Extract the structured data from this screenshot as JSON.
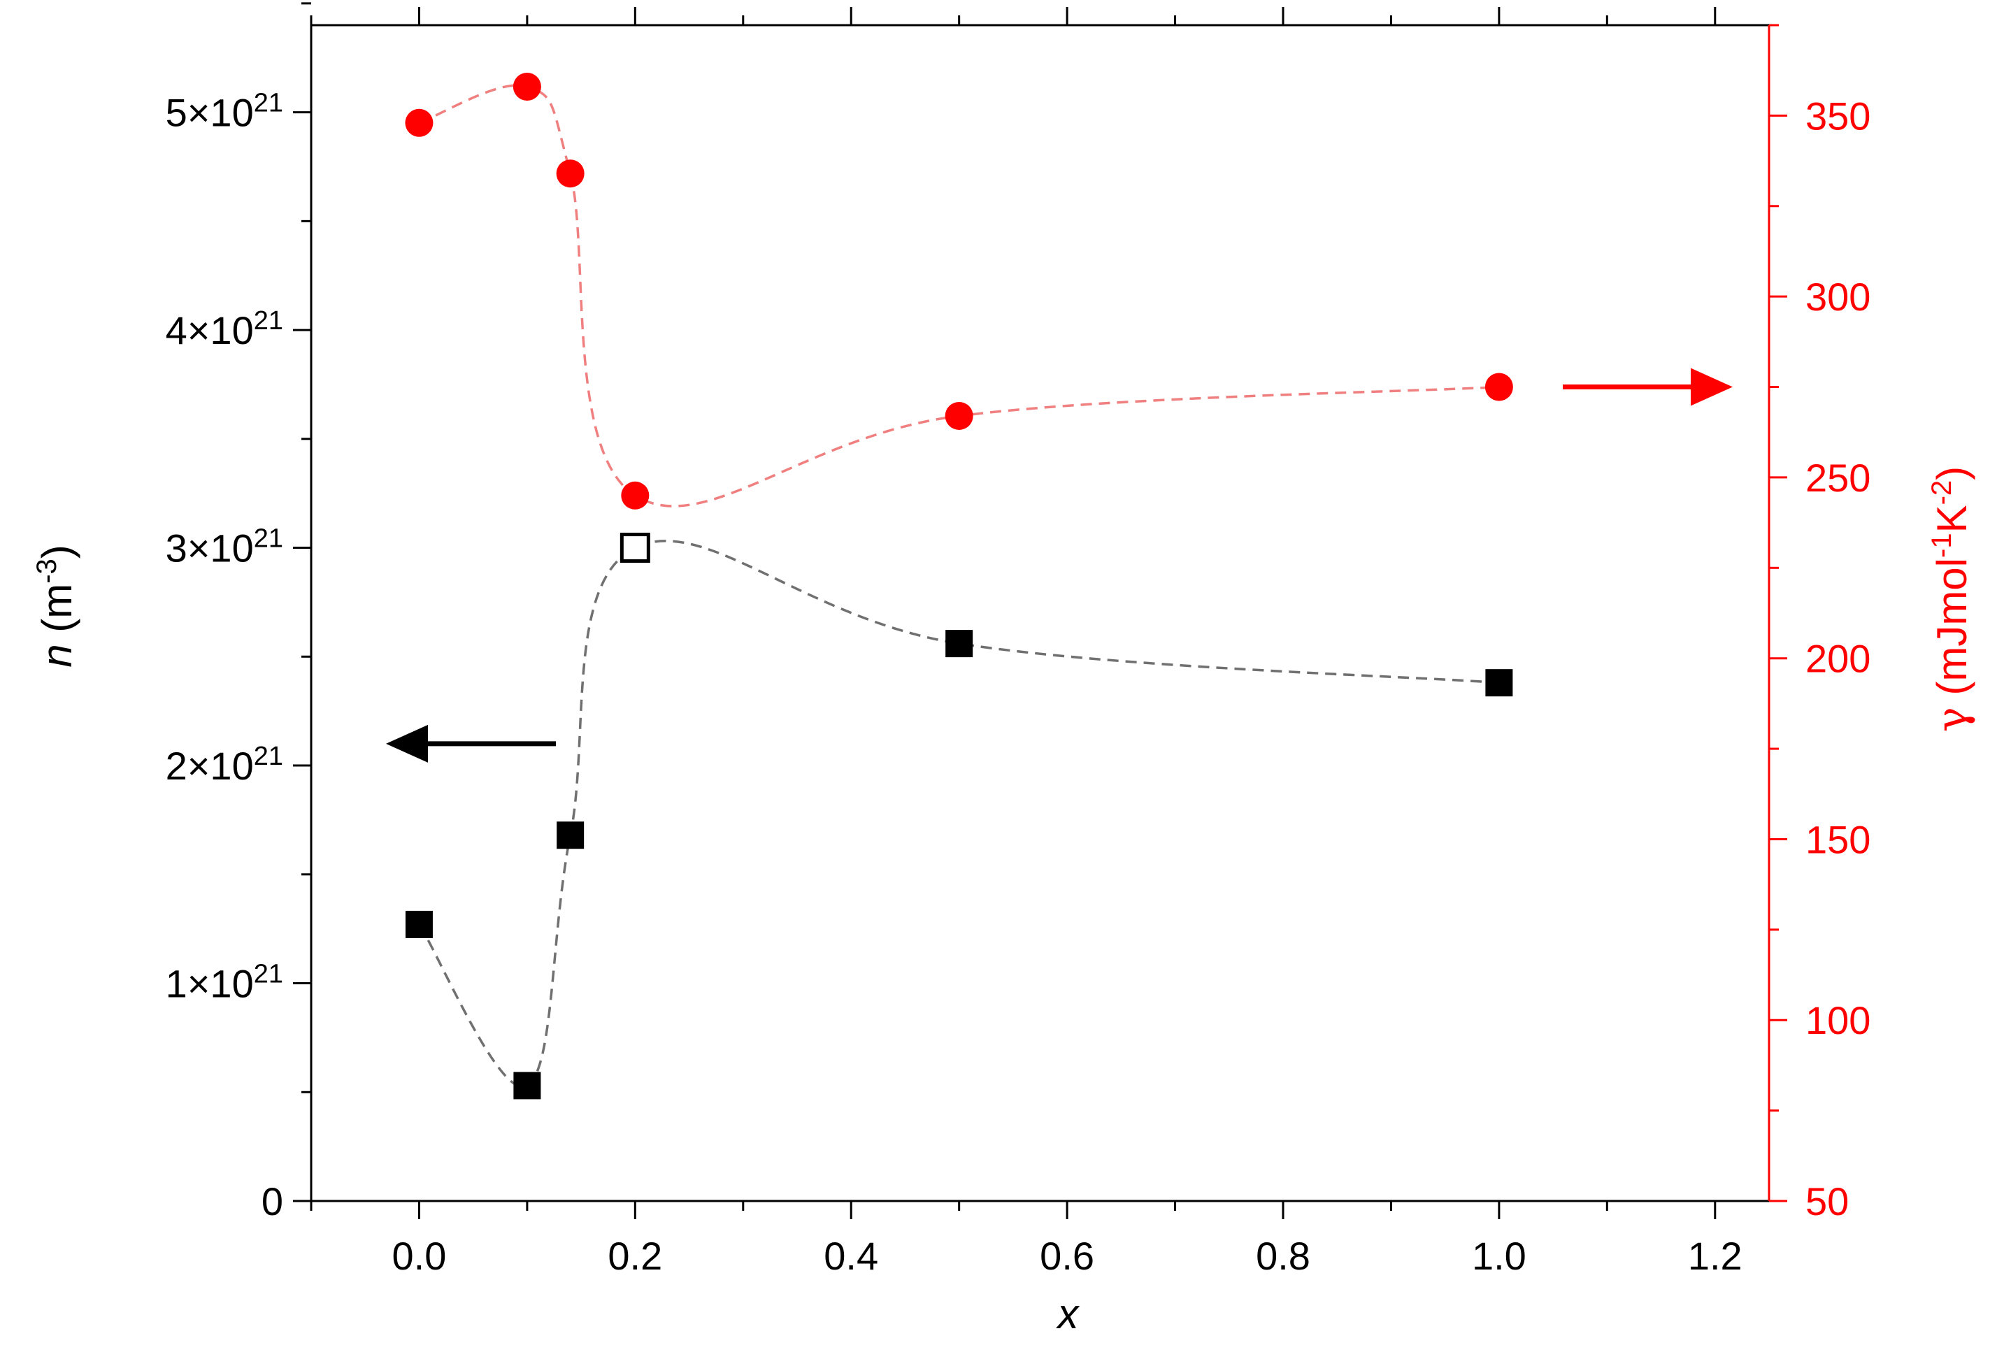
{
  "chart_data": {
    "type": "scatter",
    "xlabel": "x",
    "xlim": [
      -0.1,
      1.25
    ],
    "xticks": [
      "0.0",
      "0.2",
      "0.4",
      "0.6",
      "0.8",
      "1.0",
      "1.2"
    ],
    "left_axis": {
      "label": "n (m-3)",
      "label_parts": {
        "italic": "n",
        "text": " (m",
        "sup": "-3",
        "close": ")"
      },
      "ylim": [
        0,
        5.4e+21
      ],
      "ticks": [
        {
          "value": 0,
          "label": "0"
        },
        {
          "value": 1e+21,
          "label": "1×10",
          "sup": "21"
        },
        {
          "value": 2e+21,
          "label": "2×10",
          "sup": "21"
        },
        {
          "value": 3e+21,
          "label": "3×10",
          "sup": "21"
        },
        {
          "value": 4e+21,
          "label": "4×10",
          "sup": "21"
        },
        {
          "value": 5e+21,
          "label": "5×10",
          "sup": "21"
        }
      ],
      "color": "#000000"
    },
    "right_axis": {
      "label": "γ (mJmol-1K-2)",
      "label_parts": {
        "greek": "γ",
        "a": " (mJmol",
        "sup1": "-1",
        "b": "K",
        "sup2": "-2",
        "close": ")"
      },
      "ylim": [
        50,
        375
      ],
      "ticks": [
        "50",
        "100",
        "150",
        "200",
        "250",
        "300",
        "350"
      ],
      "color": "#ff0000"
    },
    "series": [
      {
        "axis": "left",
        "marker": "square",
        "color": "#000000",
        "line_color": "#707070",
        "x": [
          0.0,
          0.1,
          0.14,
          0.2,
          0.5,
          1.0
        ],
        "y": [
          1.27e+21,
          5.3e+20,
          1.68e+21,
          3e+21,
          2.56e+21,
          2.38e+21
        ],
        "hollow": [
          false,
          false,
          false,
          true,
          false,
          false
        ]
      },
      {
        "axis": "right",
        "marker": "circle",
        "color": "#ff0000",
        "line_color": "#f08080",
        "x": [
          0.0,
          0.1,
          0.14,
          0.2,
          0.5,
          1.0
        ],
        "y": [
          348,
          358,
          334,
          245,
          267,
          275
        ]
      }
    ],
    "annotations": [
      {
        "type": "arrow",
        "direction": "left",
        "axis": "left",
        "color": "#000000"
      },
      {
        "type": "arrow",
        "direction": "right",
        "axis": "right",
        "color": "#ff0000"
      }
    ]
  }
}
